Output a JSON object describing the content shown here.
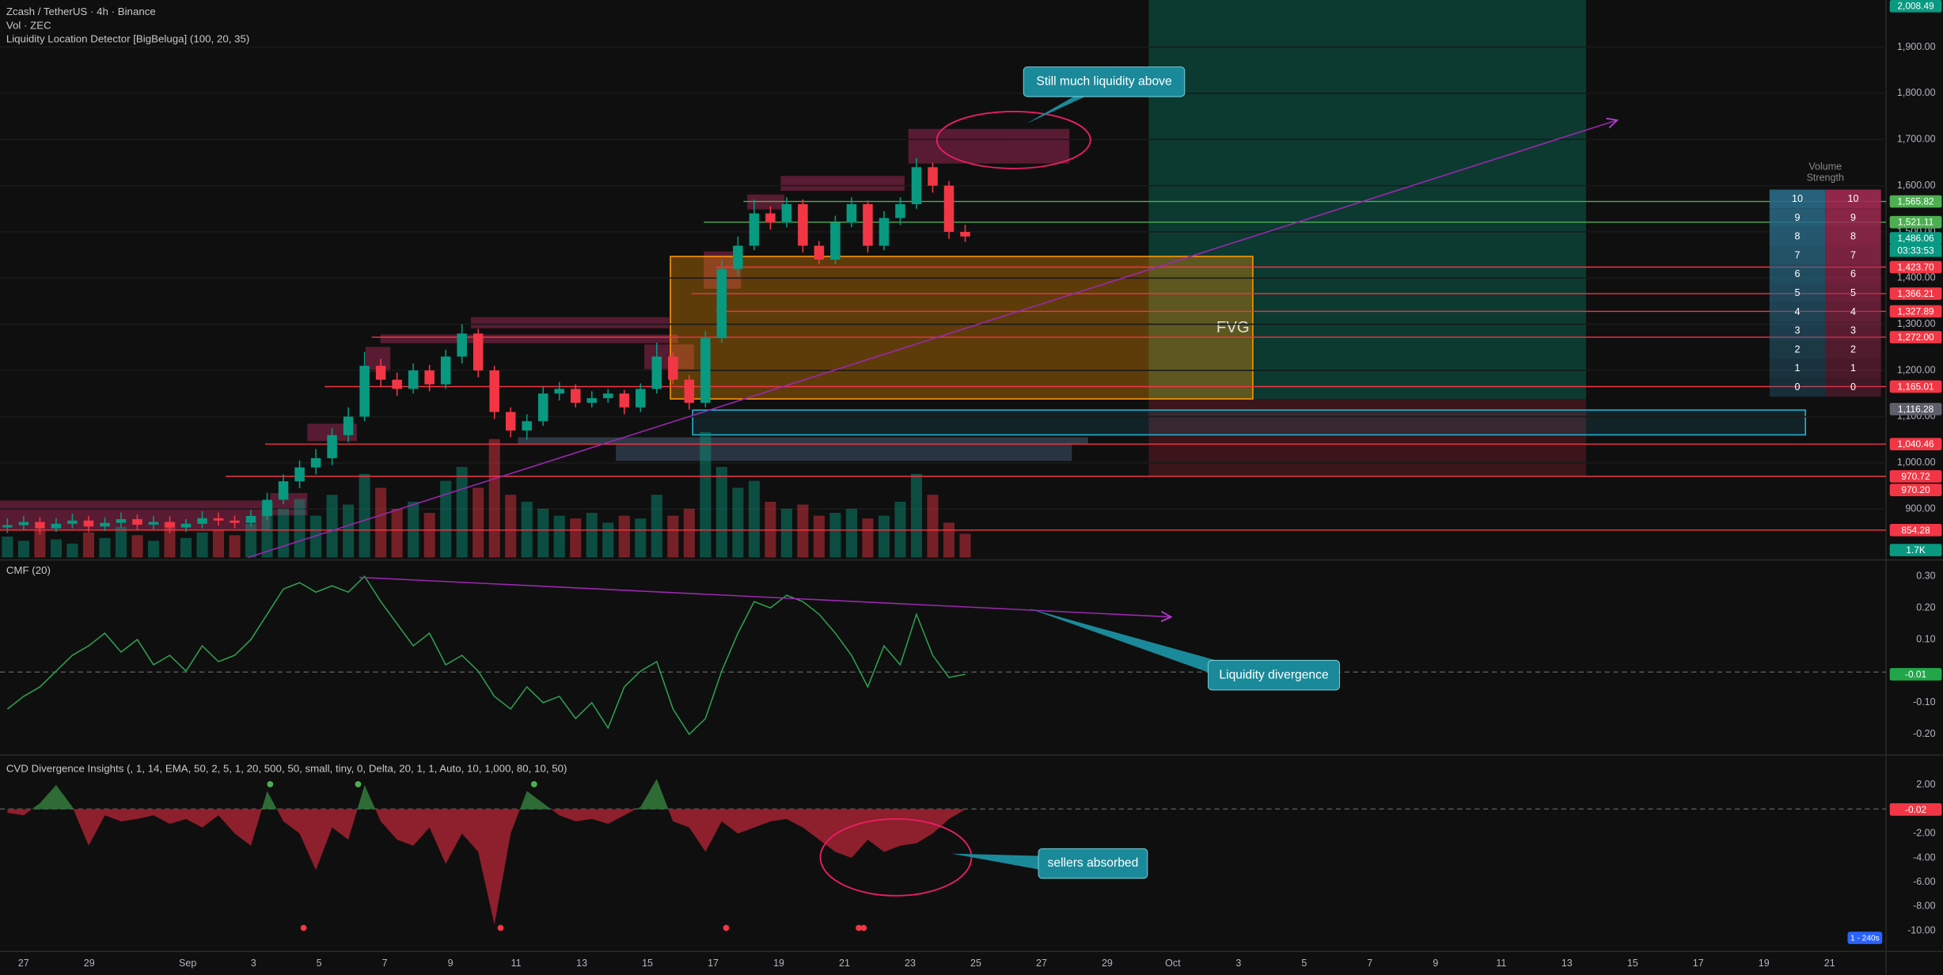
{
  "chart_data": [
    {
      "type": "candlestick",
      "title": "Zcash / TetherUS · 4h · Binance",
      "subtitle": "Vol · ZEC",
      "indicator": "Liquidity Location Detector [BigBeluga] (100, 20, 35)",
      "open": [
        860,
        865,
        872,
        858,
        868,
        875,
        862,
        870,
        878,
        866,
        872,
        860,
        868,
        880,
        875,
        870,
        885,
        920,
        960,
        990,
        1010,
        1060,
        1100,
        1210,
        1180,
        1160,
        1200,
        1170,
        1230,
        1280,
        1200,
        1110,
        1070,
        1090,
        1150,
        1160,
        1130,
        1140,
        1150,
        1120,
        1160,
        1230,
        1180,
        1130,
        1270,
        1420,
        1470,
        1540,
        1520,
        1560,
        1470,
        1440,
        1520,
        1560,
        1470,
        1530,
        1560,
        1640,
        1600,
        1500
      ],
      "high": [
        880,
        885,
        882,
        880,
        890,
        885,
        882,
        892,
        888,
        885,
        884,
        878,
        895,
        892,
        886,
        898,
        935,
        975,
        1005,
        1030,
        1075,
        1120,
        1240,
        1225,
        1195,
        1215,
        1212,
        1245,
        1300,
        1290,
        1210,
        1120,
        1105,
        1165,
        1175,
        1170,
        1155,
        1160,
        1158,
        1172,
        1260,
        1240,
        1190,
        1285,
        1440,
        1490,
        1570,
        1555,
        1575,
        1570,
        1480,
        1535,
        1575,
        1568,
        1545,
        1575,
        1660,
        1650,
        1610,
        1515
      ],
      "low": [
        848,
        855,
        845,
        850,
        858,
        850,
        852,
        860,
        855,
        856,
        848,
        850,
        858,
        864,
        858,
        862,
        875,
        910,
        945,
        975,
        995,
        1045,
        1090,
        1165,
        1145,
        1150,
        1155,
        1160,
        1215,
        1185,
        1095,
        1055,
        1050,
        1080,
        1135,
        1120,
        1120,
        1130,
        1105,
        1110,
        1150,
        1170,
        1115,
        1120,
        1260,
        1405,
        1460,
        1505,
        1510,
        1455,
        1430,
        1430,
        1510,
        1455,
        1460,
        1515,
        1550,
        1585,
        1485,
        1478
      ],
      "close": [
        865,
        872,
        858,
        868,
        875,
        862,
        870,
        878,
        866,
        872,
        860,
        868,
        880,
        875,
        870,
        885,
        920,
        960,
        990,
        1010,
        1060,
        1100,
        1210,
        1180,
        1160,
        1200,
        1170,
        1230,
        1280,
        1200,
        1110,
        1070,
        1090,
        1150,
        1160,
        1130,
        1140,
        1150,
        1120,
        1160,
        1230,
        1180,
        1130,
        1270,
        1420,
        1470,
        1540,
        1520,
        1560,
        1470,
        1440,
        1520,
        1560,
        1470,
        1530,
        1560,
        1640,
        1600,
        1500,
        1490
      ],
      "up_color": "#089981",
      "down_color": "#f23645",
      "ylim": [
        795,
        2002
      ],
      "yticks": [
        {
          "value": 900,
          "label": "900.00"
        },
        {
          "value": 1000,
          "label": "1,000.00"
        },
        {
          "value": 1100,
          "label": "1,100.00"
        },
        {
          "value": 1200,
          "label": "1,200.00"
        },
        {
          "value": 1300,
          "label": "1,300.00"
        },
        {
          "value": 1400,
          "label": "1,400.00"
        },
        {
          "value": 1500,
          "label": "1,500.00"
        },
        {
          "value": 1600,
          "label": "1,600.00"
        },
        {
          "value": 1700,
          "label": "1,700.00"
        },
        {
          "value": 1800,
          "label": "1,800.00"
        },
        {
          "value": 1900,
          "label": "1,900.00"
        }
      ],
      "x_labels": [
        "27",
        "29",
        "Sep",
        "3",
        "5",
        "7",
        "9",
        "11",
        "13",
        "15",
        "17",
        "19",
        "21",
        "23",
        "25",
        "27",
        "29",
        "Oct",
        "3",
        "5",
        "7",
        "9",
        "11",
        "13",
        "15",
        "17",
        "19",
        "21"
      ],
      "levels": [
        {
          "value": 2008.49,
          "label": "2,008.49",
          "color": "#089981"
        },
        {
          "value": 1565.82,
          "label": "1,565.82",
          "color": "#4caf50"
        },
        {
          "value": 1521.11,
          "label": "1,521.11",
          "color": "#4caf50"
        },
        {
          "value": 1486.06,
          "label": "1,486.06",
          "color": "#089981"
        },
        {
          "value": 1423.7,
          "label": "1,423.70",
          "color": "#f23645"
        },
        {
          "value": 1366.21,
          "label": "1,366.21",
          "color": "#f23645"
        },
        {
          "value": 1327.89,
          "label": "1,327.89",
          "color": "#f23645"
        },
        {
          "value": 1272.0,
          "label": "1,272.00",
          "color": "#f23645"
        },
        {
          "value": 1165.01,
          "label": "1,165.01",
          "color": "#f23645"
        },
        {
          "value": 1116.28,
          "label": "1,116.28",
          "color": "#5d606b"
        },
        {
          "value": 1040.46,
          "label": "1,040.46",
          "color": "#f23645"
        },
        {
          "value": 970.72,
          "label": "970.72",
          "color": "#f23645"
        },
        {
          "value": 970.2,
          "label": "970.20",
          "color": "#f23645"
        },
        {
          "value": 854.28,
          "label": "854.28",
          "color": "#f23645"
        }
      ],
      "countdown": "03:33:53",
      "volume": {
        "values": [
          1.5,
          1.2,
          2.0,
          1.3,
          1.0,
          1.8,
          1.4,
          2.2,
          1.6,
          1.2,
          2.5,
          1.4,
          1.8,
          2.0,
          1.6,
          2.4,
          4.0,
          3.5,
          4.2,
          3.0,
          4.5,
          3.8,
          6.0,
          5.0,
          3.5,
          4.0,
          3.2,
          5.5,
          6.5,
          5.0,
          8.5,
          4.5,
          4.0,
          3.5,
          3.0,
          2.8,
          3.2,
          2.5,
          3.0,
          2.8,
          4.5,
          3.0,
          3.5,
          9.0,
          6.5,
          5.0,
          5.5,
          4.0,
          3.5,
          3.8,
          3.0,
          3.2,
          3.5,
          2.8,
          3.0,
          4.0,
          6.0,
          4.5,
          2.5,
          1.7
        ],
        "value_labels": [
          null,
          null,
          null,
          null,
          null,
          null,
          null,
          null,
          null,
          null,
          null,
          null,
          null,
          null,
          null,
          null,
          null,
          null,
          null,
          null,
          null,
          null,
          null,
          null,
          null,
          null,
          null,
          null,
          null,
          null,
          null,
          null,
          null,
          null,
          null,
          null,
          null,
          null,
          null,
          null,
          null,
          null,
          null,
          null,
          null,
          null,
          null,
          null,
          null,
          null,
          null,
          null,
          null,
          null,
          null,
          null,
          null,
          null,
          null,
          "1.7K"
        ],
        "ylim": [
          0,
          40
        ]
      },
      "annotation": "Still much liquidity above",
      "zone_label": "FVG",
      "volume_strength": {
        "title": [
          "Volume",
          "Strength"
        ],
        "buy": [
          10,
          9,
          8,
          7,
          6,
          5,
          4,
          3,
          2,
          1,
          0
        ],
        "sell": [
          10,
          9,
          8,
          7,
          6,
          5,
          4,
          3,
          2,
          1,
          0
        ]
      }
    },
    {
      "type": "line",
      "title": "CMF (20)",
      "values": [
        -0.12,
        -0.08,
        -0.05,
        0.0,
        0.05,
        0.08,
        0.12,
        0.06,
        0.1,
        0.02,
        0.05,
        0.0,
        0.08,
        0.03,
        0.05,
        0.1,
        0.18,
        0.26,
        0.28,
        0.25,
        0.27,
        0.25,
        0.3,
        0.22,
        0.15,
        0.08,
        0.12,
        0.02,
        0.05,
        0.0,
        -0.08,
        -0.12,
        -0.05,
        -0.1,
        -0.08,
        -0.15,
        -0.1,
        -0.18,
        -0.05,
        0.0,
        0.03,
        -0.12,
        -0.2,
        -0.15,
        0.0,
        0.12,
        0.22,
        0.2,
        0.24,
        0.22,
        0.18,
        0.12,
        0.05,
        -0.05,
        0.08,
        0.02,
        0.18,
        0.05,
        -0.02,
        -0.01
      ],
      "color": "#2e9e4f",
      "ylim": [
        -0.26,
        0.34
      ],
      "yticks": [
        {
          "value": 0.3,
          "label": "0.30"
        },
        {
          "value": 0.2,
          "label": "0.20"
        },
        {
          "value": 0.1,
          "label": "0.10"
        },
        {
          "value": -0.1,
          "label": "-0.10"
        },
        {
          "value": -0.2,
          "label": "-0.20"
        }
      ],
      "annotation": "Liquidity divergence"
    },
    {
      "type": "area",
      "title": "CVD Divergence Insights (, 1, 14, EMA, 50, 2, 5, 1, 20, 500, 50, small, tiny, 0, Delta, 20, 1, 1, Auto, 10, 1,000, 80, 10, 50)",
      "values": [
        -0.3,
        -0.5,
        0.5,
        2.0,
        0.2,
        -3.0,
        -0.5,
        -1.0,
        -0.8,
        -0.5,
        -1.2,
        -0.8,
        -1.5,
        -0.5,
        -2.0,
        -3.0,
        1.5,
        -1.0,
        -2.0,
        -5.0,
        -1.5,
        -2.5,
        2.0,
        -1.0,
        -2.5,
        -3.0,
        -1.5,
        -4.5,
        -2.0,
        -3.5,
        -9.5,
        -2.0,
        1.5,
        0.5,
        -0.5,
        -1.0,
        -0.8,
        -1.2,
        -0.5,
        0.2,
        2.5,
        -1.0,
        -1.5,
        -3.5,
        -1.0,
        -2.0,
        -1.5,
        -1.0,
        -0.8,
        -1.5,
        -2.5,
        -3.5,
        -4.0,
        -2.5,
        -3.5,
        -3.0,
        -2.8,
        -2.0,
        -0.8,
        -0.02
      ],
      "up_color": "#2e6b35",
      "down_color": "#8e1f2c",
      "ylim": [
        -11.7,
        4.2
      ],
      "yticks": [
        {
          "value": 2,
          "label": "2.00"
        },
        {
          "value": -2,
          "label": "-2.00"
        },
        {
          "value": -4,
          "label": "-4.00"
        },
        {
          "value": -6,
          "label": "-6.00"
        },
        {
          "value": -8,
          "label": "-8.00"
        },
        {
          "value": -10,
          "label": "-10.00"
        }
      ],
      "annotation": "sellers absorbed"
    }
  ],
  "footer_badge": "1 - 240s"
}
